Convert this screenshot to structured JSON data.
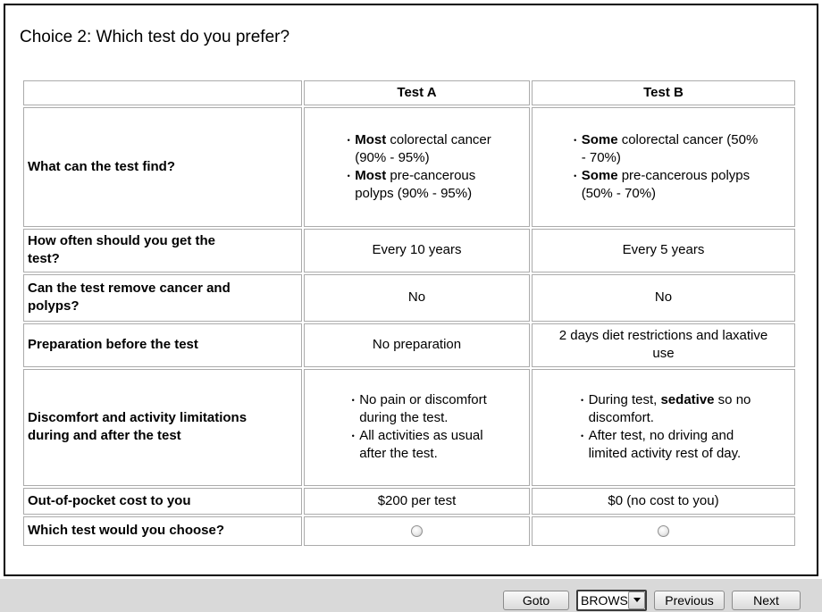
{
  "title": "Choice 2: Which test do you prefer?",
  "icons": {
    "bullet": "•"
  },
  "table": {
    "header": {
      "test_a": "Test A",
      "test_b": "Test B"
    },
    "rows": {
      "find": {
        "label": "What can the test find?",
        "a_bullets": [
          [
            {
              "b": "Most"
            },
            {
              "t": " colorectal cancer\n(90% - 95%)"
            }
          ],
          [
            {
              "b": "Most"
            },
            {
              "t": " pre-cancerous\npolyps (90% - 95%)"
            }
          ]
        ],
        "b_bullets": [
          [
            {
              "b": "Some"
            },
            {
              "t": " colorectal cancer (50%\n- 70%)"
            }
          ],
          [
            {
              "b": "Some"
            },
            {
              "t": " pre-cancerous polyps\n(50% - 70%)"
            }
          ]
        ]
      },
      "frequency": {
        "label": "How often should you get the\ntest?",
        "a": "Every 10 years",
        "b": "Every 5 years"
      },
      "removal": {
        "label": "Can the test remove cancer and\npolyps?",
        "a": "No",
        "b": "No"
      },
      "preparation": {
        "label": "Preparation before the test",
        "a": "No preparation",
        "b": "2 days diet restrictions and laxative\nuse"
      },
      "discomfort": {
        "label": "Discomfort and activity limitations\nduring and after the test",
        "a_bullets": [
          [
            {
              "t": "No pain or discomfort\nduring the test."
            }
          ],
          [
            {
              "t": "All activities as usual\nafter the test."
            }
          ]
        ],
        "b_bullets": [
          [
            {
              "t": "During test, "
            },
            {
              "b": "sedative"
            },
            {
              "t": " so no\ndiscomfort."
            }
          ],
          [
            {
              "t": "After test, no driving and\nlimited activity rest of day."
            }
          ]
        ]
      },
      "cost": {
        "label": "Out-of-pocket cost to you",
        "a": "$200 per test",
        "b": "$0 (no cost to you)"
      },
      "choice": {
        "label": "Which test would you choose?"
      }
    }
  },
  "footer": {
    "goto": "Goto",
    "dropdown_value": "BROWS",
    "previous": "Previous",
    "next": "Next"
  }
}
